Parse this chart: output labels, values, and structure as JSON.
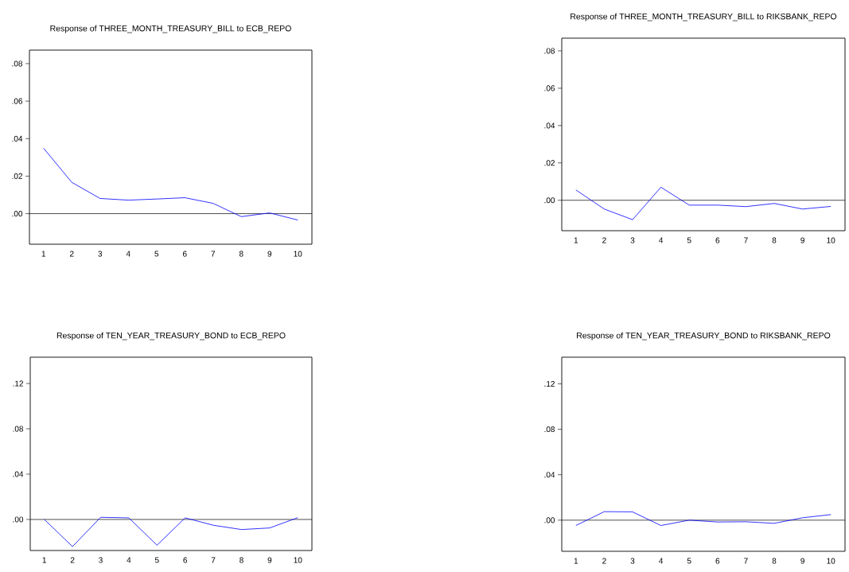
{
  "chart_data": [
    {
      "type": "line",
      "title": "Response of THREE_MONTH_TREASURY_BILL to ECB_REPO",
      "categories": [
        "1",
        "2",
        "3",
        "4",
        "5",
        "6",
        "7",
        "8",
        "9",
        "10"
      ],
      "series": [
        {
          "color": "#0000ff",
          "values": [
            0.0349,
            0.0167,
            0.0081,
            0.0072,
            0.0078,
            0.0085,
            0.0055,
            -0.0016,
            0.0004,
            -0.0034
          ]
        }
      ],
      "ylim": [
        -0.0163,
        0.0872
      ],
      "yticks": [
        {
          "value": 0,
          "label": ".00"
        },
        {
          "value": 0.02,
          "label": ".02"
        },
        {
          "value": 0.04,
          "label": ".04"
        },
        {
          "value": 0.06,
          "label": ".06"
        },
        {
          "value": 0.08,
          "label": ".08"
        }
      ],
      "ref_lines": [
        {
          "axis": "y",
          "value": 0,
          "color": "#000000"
        }
      ]
    },
    {
      "type": "line",
      "title": "Response of THREE_MONTH_TREASURY_BILL to RIKSBANK_REPO",
      "categories": [
        "1",
        "2",
        "3",
        "4",
        "5",
        "6",
        "7",
        "8",
        "9",
        "10"
      ],
      "series": [
        {
          "color": "#0000ff",
          "values": [
            0.0055,
            -0.0047,
            -0.0104,
            0.007,
            -0.0026,
            -0.0026,
            -0.0034,
            -0.0017,
            -0.0047,
            -0.0033
          ]
        }
      ],
      "ylim": [
        -0.0163,
        0.0868
      ],
      "yticks": [
        {
          "value": 0,
          "label": ".00"
        },
        {
          "value": 0.02,
          "label": ".02"
        },
        {
          "value": 0.04,
          "label": ".04"
        },
        {
          "value": 0.06,
          "label": ".06"
        },
        {
          "value": 0.08,
          "label": ".08"
        }
      ],
      "ref_lines": [
        {
          "axis": "y",
          "value": 0,
          "color": "#000000"
        }
      ]
    },
    {
      "type": "line",
      "title": "Response of TEN_YEAR_TREASURY_BOND to ECB_REPO",
      "categories": [
        "1",
        "2",
        "3",
        "4",
        "5",
        "6",
        "7",
        "8",
        "9",
        "10"
      ],
      "series": [
        {
          "color": "#0000ff",
          "values": [
            0.0,
            -0.0239,
            0.0019,
            0.0014,
            -0.0227,
            0.0014,
            -0.0051,
            -0.0089,
            -0.0075,
            0.0016
          ]
        }
      ],
      "ylim": [
        -0.0274,
        0.1432
      ],
      "yticks": [
        {
          "value": 0,
          "label": ".00"
        },
        {
          "value": 0.04,
          "label": ".04"
        },
        {
          "value": 0.08,
          "label": ".08"
        },
        {
          "value": 0.12,
          "label": ".12"
        }
      ],
      "ref_lines": [
        {
          "axis": "y",
          "value": 0,
          "color": "#000000"
        }
      ]
    },
    {
      "type": "line",
      "title": "Response of TEN_YEAR_TREASURY_BOND to RIKSBANK_REPO",
      "categories": [
        "1",
        "2",
        "3",
        "4",
        "5",
        "6",
        "7",
        "8",
        "9",
        "10"
      ],
      "series": [
        {
          "color": "#0000ff",
          "values": [
            -0.0047,
            0.0075,
            0.0073,
            -0.0047,
            0.0,
            -0.0016,
            -0.0014,
            -0.0028,
            0.0021,
            0.0049
          ]
        }
      ],
      "ylim": [
        -0.0274,
        0.1434
      ],
      "yticks": [
        {
          "value": 0,
          "label": ".00"
        },
        {
          "value": 0.04,
          "label": ".04"
        },
        {
          "value": 0.08,
          "label": ".08"
        },
        {
          "value": 0.12,
          "label": ".12"
        }
      ],
      "ref_lines": [
        {
          "axis": "y",
          "value": 0,
          "color": "#000000"
        }
      ]
    }
  ]
}
